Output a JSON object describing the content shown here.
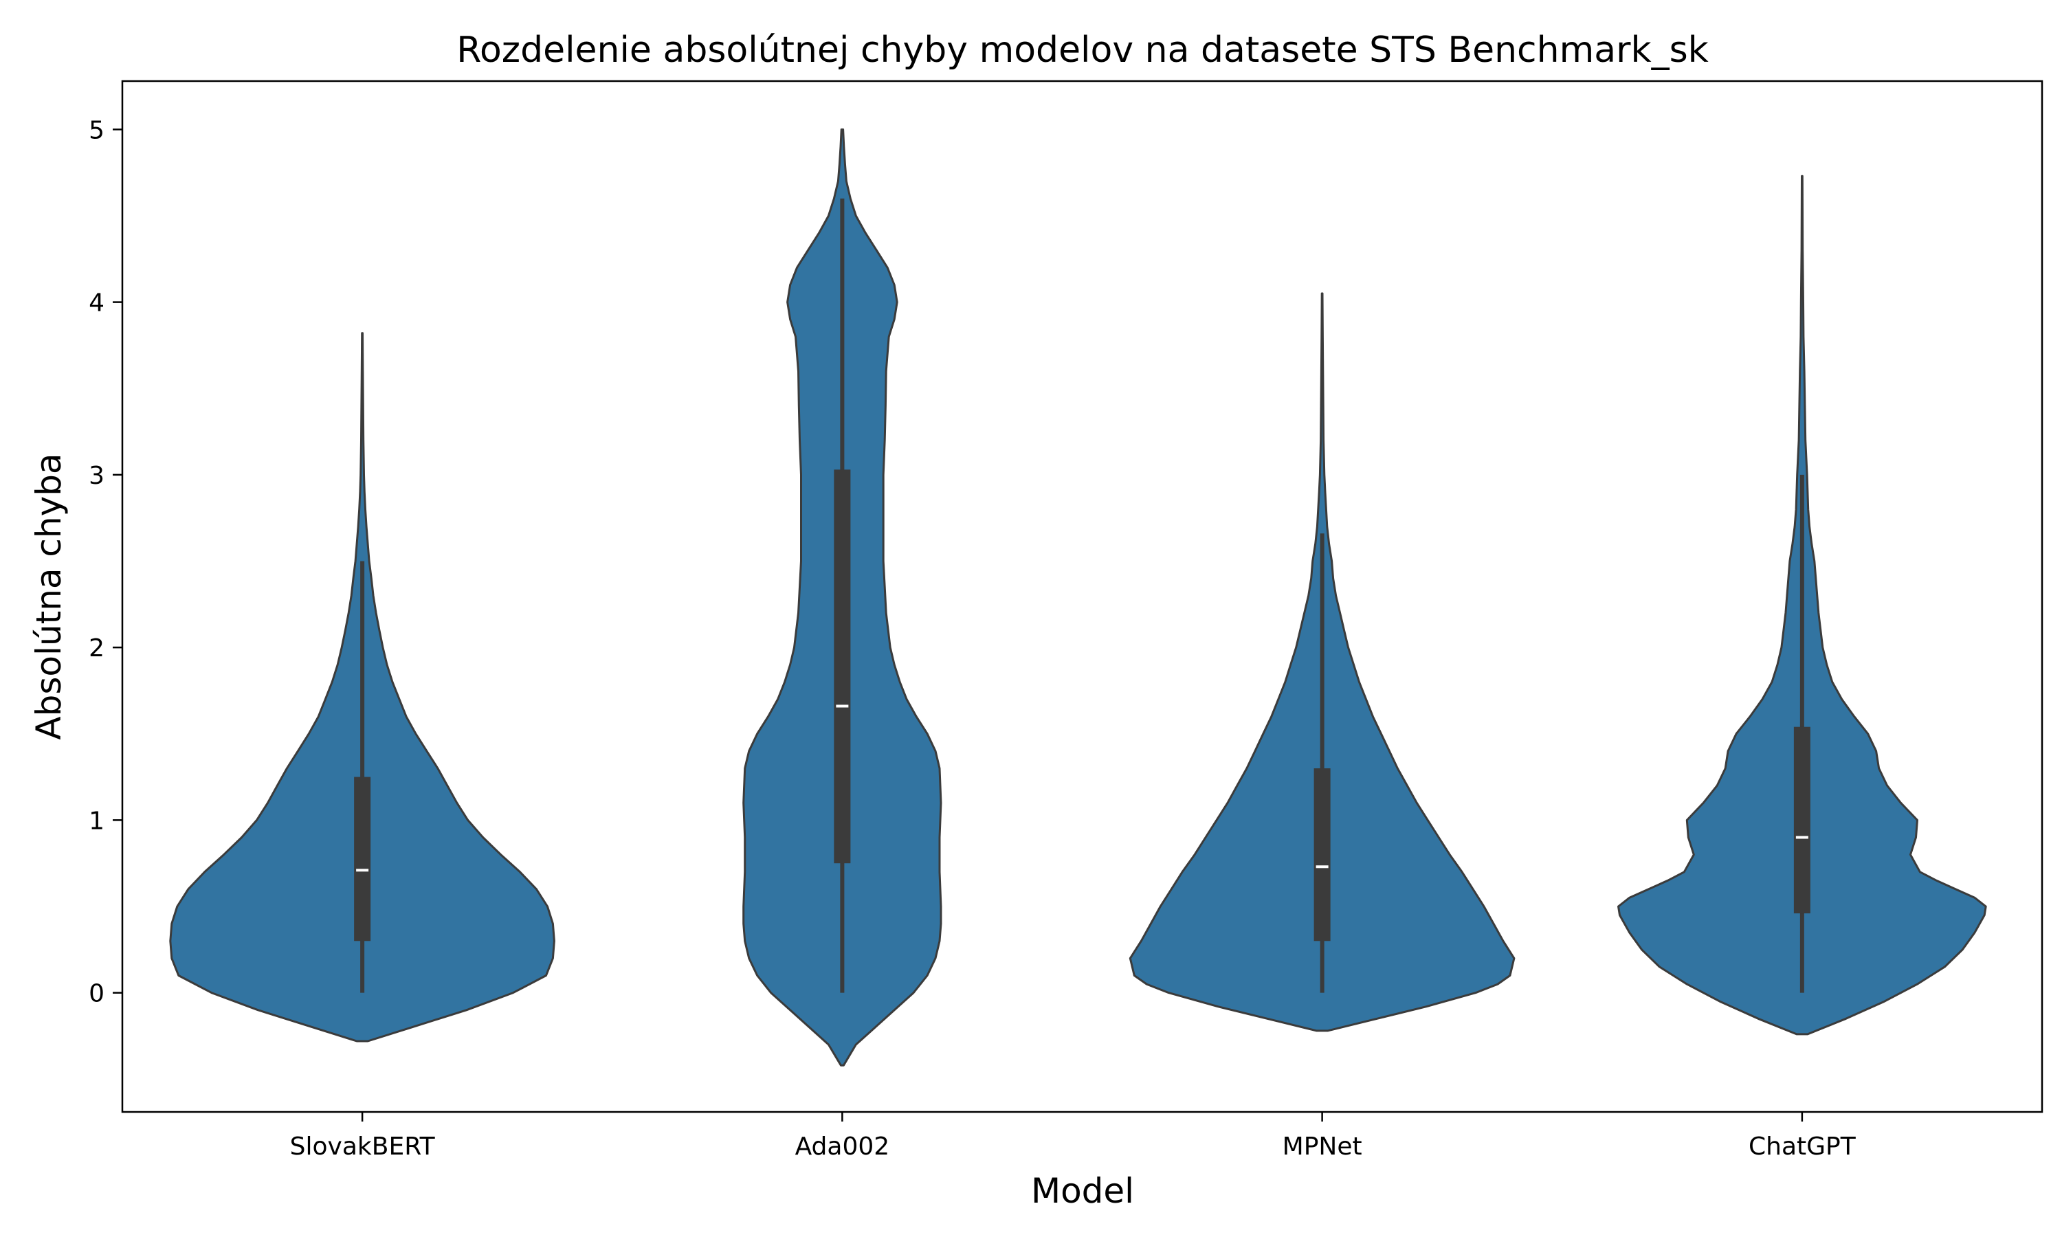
{
  "chart_data": {
    "type": "violin",
    "title": "Rozdelenie absolútnej chyby modelov na datasete STS Benchmark_sk",
    "xlabel": "Model",
    "ylabel": "Absolútna chyba",
    "categories": [
      "SlovakBERT",
      "Ada002",
      "MPNet",
      "ChatGPT"
    ],
    "ylim": [
      -0.69,
      5.28
    ],
    "yticks": [
      0,
      1,
      2,
      3,
      4,
      5
    ],
    "ytick_labels": [
      "0",
      "1",
      "2",
      "3",
      "4",
      "5"
    ],
    "grid": false,
    "legend": "none",
    "color": "#3274a1",
    "edge_color": "#3b3b3b",
    "series": [
      {
        "category": "SlovakBERT",
        "median": 0.71,
        "q1": 0.3,
        "q3": 1.25,
        "whisker_low": 0.0,
        "whisker_high": 2.5,
        "min": -0.28,
        "max": 3.82,
        "density": [
          [
            -0.28,
            0.02
          ],
          [
            -0.2,
            0.18
          ],
          [
            -0.1,
            0.38
          ],
          [
            0.0,
            0.55
          ],
          [
            0.1,
            0.67
          ],
          [
            0.2,
            0.695
          ],
          [
            0.3,
            0.7
          ],
          [
            0.4,
            0.695
          ],
          [
            0.5,
            0.675
          ],
          [
            0.6,
            0.635
          ],
          [
            0.7,
            0.575
          ],
          [
            0.8,
            0.505
          ],
          [
            0.9,
            0.44
          ],
          [
            1.0,
            0.385
          ],
          [
            1.1,
            0.345
          ],
          [
            1.2,
            0.31
          ],
          [
            1.3,
            0.275
          ],
          [
            1.4,
            0.235
          ],
          [
            1.5,
            0.195
          ],
          [
            1.6,
            0.16
          ],
          [
            1.7,
            0.135
          ],
          [
            1.8,
            0.11
          ],
          [
            1.9,
            0.09
          ],
          [
            2.0,
            0.075
          ],
          [
            2.1,
            0.062
          ],
          [
            2.2,
            0.05
          ],
          [
            2.3,
            0.04
          ],
          [
            2.4,
            0.033
          ],
          [
            2.5,
            0.025
          ],
          [
            2.6,
            0.02
          ],
          [
            2.7,
            0.015
          ],
          [
            2.8,
            0.011
          ],
          [
            2.9,
            0.008
          ],
          [
            3.0,
            0.006
          ],
          [
            3.2,
            0.004
          ],
          [
            3.4,
            0.003
          ],
          [
            3.6,
            0.002
          ],
          [
            3.82,
            0.001
          ]
        ]
      },
      {
        "category": "Ada002",
        "median": 1.66,
        "q1": 0.75,
        "q3": 3.03,
        "whisker_low": 0.0,
        "whisker_high": 4.6,
        "min": -0.42,
        "max": 5.0,
        "density": [
          [
            -0.42,
            0.005
          ],
          [
            -0.3,
            0.05
          ],
          [
            -0.2,
            0.12
          ],
          [
            -0.1,
            0.19
          ],
          [
            0.0,
            0.26
          ],
          [
            0.1,
            0.31
          ],
          [
            0.2,
            0.34
          ],
          [
            0.3,
            0.355
          ],
          [
            0.4,
            0.36
          ],
          [
            0.5,
            0.36
          ],
          [
            0.7,
            0.355
          ],
          [
            0.9,
            0.355
          ],
          [
            1.1,
            0.36
          ],
          [
            1.3,
            0.355
          ],
          [
            1.4,
            0.34
          ],
          [
            1.5,
            0.31
          ],
          [
            1.6,
            0.27
          ],
          [
            1.7,
            0.235
          ],
          [
            1.8,
            0.21
          ],
          [
            1.9,
            0.19
          ],
          [
            2.0,
            0.175
          ],
          [
            2.2,
            0.16
          ],
          [
            2.5,
            0.15
          ],
          [
            2.8,
            0.15
          ],
          [
            3.0,
            0.15
          ],
          [
            3.2,
            0.155
          ],
          [
            3.4,
            0.158
          ],
          [
            3.6,
            0.16
          ],
          [
            3.8,
            0.17
          ],
          [
            3.9,
            0.19
          ],
          [
            4.0,
            0.2
          ],
          [
            4.1,
            0.19
          ],
          [
            4.2,
            0.165
          ],
          [
            4.3,
            0.125
          ],
          [
            4.4,
            0.085
          ],
          [
            4.5,
            0.05
          ],
          [
            4.6,
            0.03
          ],
          [
            4.7,
            0.015
          ],
          [
            4.8,
            0.01
          ],
          [
            4.9,
            0.006
          ],
          [
            5.0,
            0.003
          ]
        ]
      },
      {
        "category": "MPNet",
        "median": 0.73,
        "q1": 0.3,
        "q3": 1.3,
        "whisker_low": 0.0,
        "whisker_high": 2.66,
        "min": -0.22,
        "max": 4.05,
        "density": [
          [
            -0.22,
            0.02
          ],
          [
            -0.15,
            0.2
          ],
          [
            -0.08,
            0.38
          ],
          [
            0.0,
            0.56
          ],
          [
            0.05,
            0.64
          ],
          [
            0.1,
            0.685
          ],
          [
            0.2,
            0.7
          ],
          [
            0.3,
            0.66
          ],
          [
            0.4,
            0.625
          ],
          [
            0.5,
            0.59
          ],
          [
            0.6,
            0.55
          ],
          [
            0.7,
            0.51
          ],
          [
            0.8,
            0.465
          ],
          [
            0.9,
            0.425
          ],
          [
            1.0,
            0.385
          ],
          [
            1.1,
            0.345
          ],
          [
            1.2,
            0.31
          ],
          [
            1.3,
            0.275
          ],
          [
            1.4,
            0.245
          ],
          [
            1.5,
            0.215
          ],
          [
            1.6,
            0.185
          ],
          [
            1.7,
            0.16
          ],
          [
            1.8,
            0.135
          ],
          [
            1.9,
            0.115
          ],
          [
            2.0,
            0.095
          ],
          [
            2.1,
            0.08
          ],
          [
            2.2,
            0.065
          ],
          [
            2.3,
            0.05
          ],
          [
            2.4,
            0.04
          ],
          [
            2.5,
            0.035
          ],
          [
            2.6,
            0.025
          ],
          [
            2.7,
            0.018
          ],
          [
            2.9,
            0.011
          ],
          [
            3.0,
            0.008
          ],
          [
            3.2,
            0.005
          ],
          [
            3.4,
            0.004
          ],
          [
            3.6,
            0.003
          ],
          [
            3.8,
            0.002
          ],
          [
            4.05,
            0.001
          ]
        ]
      },
      {
        "category": "ChatGPT",
        "median": 0.9,
        "q1": 0.46,
        "q3": 1.54,
        "whisker_low": 0.0,
        "whisker_high": 3.0,
        "min": -0.24,
        "max": 4.73,
        "density": [
          [
            -0.24,
            0.02
          ],
          [
            -0.15,
            0.16
          ],
          [
            -0.05,
            0.3
          ],
          [
            0.05,
            0.42
          ],
          [
            0.15,
            0.52
          ],
          [
            0.25,
            0.585
          ],
          [
            0.35,
            0.63
          ],
          [
            0.45,
            0.665
          ],
          [
            0.5,
            0.67
          ],
          [
            0.55,
            0.63
          ],
          [
            0.6,
            0.56
          ],
          [
            0.65,
            0.49
          ],
          [
            0.7,
            0.43
          ],
          [
            0.8,
            0.395
          ],
          [
            0.9,
            0.415
          ],
          [
            1.0,
            0.42
          ],
          [
            1.1,
            0.36
          ],
          [
            1.2,
            0.31
          ],
          [
            1.3,
            0.28
          ],
          [
            1.4,
            0.27
          ],
          [
            1.5,
            0.24
          ],
          [
            1.6,
            0.19
          ],
          [
            1.7,
            0.145
          ],
          [
            1.8,
            0.11
          ],
          [
            1.9,
            0.09
          ],
          [
            2.0,
            0.075
          ],
          [
            2.2,
            0.06
          ],
          [
            2.4,
            0.05
          ],
          [
            2.5,
            0.045
          ],
          [
            2.6,
            0.035
          ],
          [
            2.7,
            0.027
          ],
          [
            2.8,
            0.022
          ],
          [
            3.0,
            0.018
          ],
          [
            3.2,
            0.012
          ],
          [
            3.4,
            0.01
          ],
          [
            3.6,
            0.008
          ],
          [
            3.8,
            0.005
          ],
          [
            4.0,
            0.004
          ],
          [
            4.3,
            0.002
          ],
          [
            4.73,
            0.001
          ]
        ]
      }
    ]
  }
}
